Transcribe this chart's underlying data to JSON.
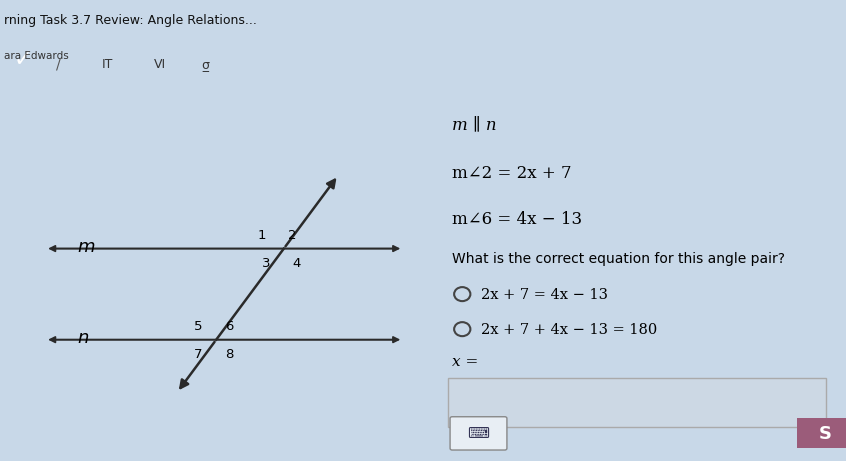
{
  "title": "rning Task 3.7 Review: Angle Relations...",
  "subtitle": "ara Edwards",
  "bg_color": "#c8d8e8",
  "panel_bg": "#d0e0ee",
  "right_bg": "#c8d8e8",
  "parallel_label_m": "m",
  "parallel_label_n": "n",
  "parallel_notation": "m ∥ n",
  "angle2_eq": "m∠2 = 2x + 7",
  "angle6_eq": "m∠6 = 4x − 13",
  "question": "What is the correct equation for this angle pair?",
  "choice1": "2x + 7 = 4x − 13",
  "choice2": "2x + 7 + 4x − 13 = 180",
  "answer_label": "x =",
  "toolbar_color": "#1a5fb4",
  "submit_color": "#9b5c7a",
  "title_color": "#111111",
  "subtitle_color": "#333333"
}
